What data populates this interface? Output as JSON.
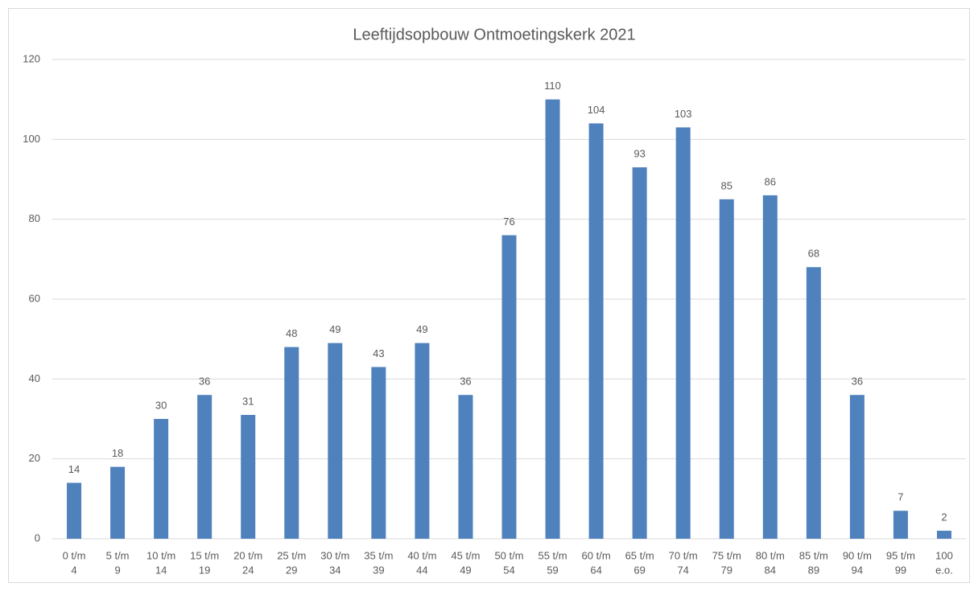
{
  "chart_data": {
    "type": "bar",
    "title": "Leeftijdsopbouw Ontmoetingskerk 2021",
    "categories": [
      [
        "0 t/m",
        "4"
      ],
      [
        "5 t/m",
        "9"
      ],
      [
        "10 t/m",
        "14"
      ],
      [
        "15 t/m",
        "19"
      ],
      [
        "20 t/m",
        "24"
      ],
      [
        "25 t/m",
        "29"
      ],
      [
        "30 t/m",
        "34"
      ],
      [
        "35 t/m",
        "39"
      ],
      [
        "40 t/m",
        "44"
      ],
      [
        "45 t/m",
        "49"
      ],
      [
        "50 t/m",
        "54"
      ],
      [
        "55 t/m",
        "59"
      ],
      [
        "60 t/m",
        "64"
      ],
      [
        "65 t/m",
        "69"
      ],
      [
        "70 t/m",
        "74"
      ],
      [
        "75 t/m",
        "79"
      ],
      [
        "80 t/m",
        "84"
      ],
      [
        "85 t/m",
        "89"
      ],
      [
        "90 t/m",
        "94"
      ],
      [
        "95 t/m",
        "99"
      ],
      [
        "100",
        "e.o."
      ]
    ],
    "values": [
      14,
      18,
      30,
      36,
      31,
      48,
      49,
      43,
      49,
      36,
      76,
      110,
      104,
      93,
      103,
      85,
      86,
      68,
      36,
      7,
      2
    ],
    "color": "#4f81bd",
    "ylim": [
      0,
      120
    ],
    "yticks": [
      0,
      20,
      40,
      60,
      80,
      100,
      120
    ],
    "grid": true
  }
}
